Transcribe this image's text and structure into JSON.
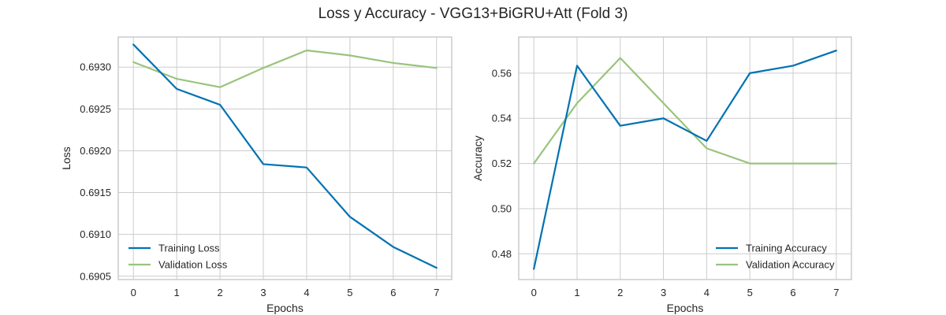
{
  "figure": {
    "suptitle": "Loss y Accuracy - VGG13+BiGRU+Att (Fold 3)"
  },
  "chart_data": [
    {
      "type": "line",
      "title": "",
      "xlabel": "Epochs",
      "ylabel": "Loss",
      "x": [
        0,
        1,
        2,
        3,
        4,
        5,
        6,
        7
      ],
      "x_ticks": [
        "0",
        "1",
        "2",
        "3",
        "4",
        "5",
        "6",
        "7"
      ],
      "y_ticks": [
        "0.6905",
        "0.6910",
        "0.6915",
        "0.6920",
        "0.6925",
        "0.6930"
      ],
      "xlim": [
        -0.35,
        7.35
      ],
      "ylim": [
        0.69046,
        0.69336
      ],
      "grid": true,
      "legend_position": "bottom-left",
      "series": [
        {
          "name": "Training Loss",
          "color": "#0072b2",
          "values": [
            0.69327,
            0.69274,
            0.69255,
            0.69184,
            0.6918,
            0.69121,
            0.69085,
            0.6906
          ]
        },
        {
          "name": "Validation Loss",
          "color": "#99c47d",
          "values": [
            0.69306,
            0.69286,
            0.69276,
            0.69299,
            0.6932,
            0.69314,
            0.69305,
            0.69299
          ]
        }
      ]
    },
    {
      "type": "line",
      "title": "",
      "xlabel": "Epochs",
      "ylabel": "Accuracy",
      "x": [
        0,
        1,
        2,
        3,
        4,
        5,
        6,
        7
      ],
      "x_ticks": [
        "0",
        "1",
        "2",
        "3",
        "4",
        "5",
        "6",
        "7"
      ],
      "y_ticks": [
        "0.48",
        "0.50",
        "0.52",
        "0.54",
        "0.56"
      ],
      "xlim": [
        -0.35,
        7.35
      ],
      "ylim": [
        0.4686,
        0.576
      ],
      "grid": true,
      "legend_position": "bottom-right",
      "series": [
        {
          "name": "Training Accuracy",
          "color": "#0072b2",
          "values": [
            0.4733,
            0.5633,
            0.5367,
            0.54,
            0.53,
            0.56,
            0.5633,
            0.57
          ]
        },
        {
          "name": "Validation Accuracy",
          "color": "#99c47d",
          "values": [
            0.52,
            0.5467,
            0.5667,
            0.5467,
            0.5267,
            0.52,
            0.52,
            0.52
          ]
        }
      ]
    }
  ]
}
